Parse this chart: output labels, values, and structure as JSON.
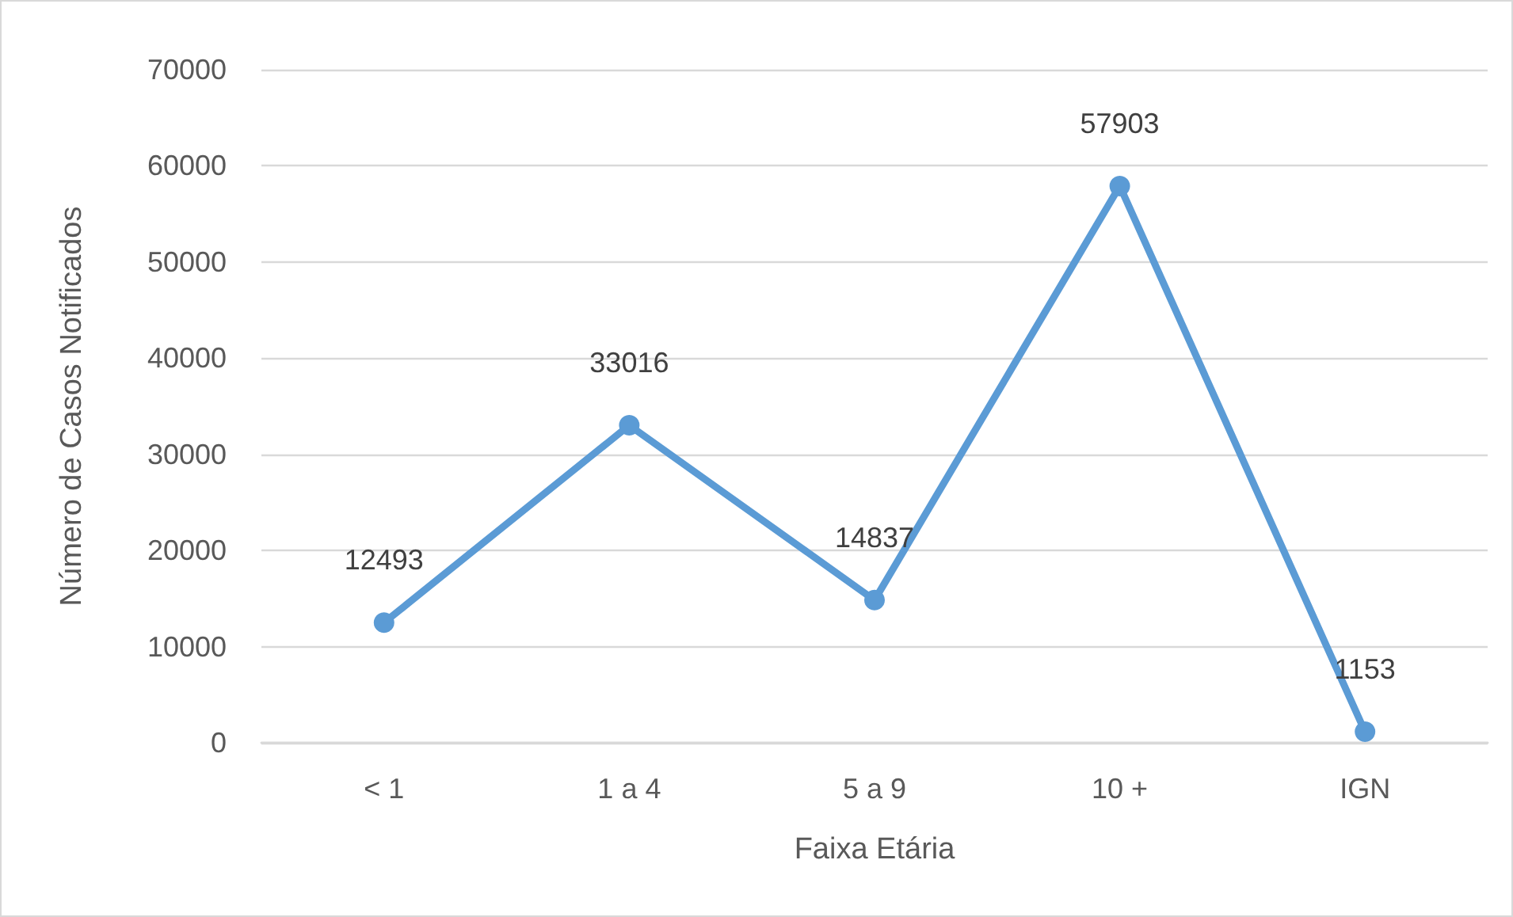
{
  "chart_data": {
    "type": "line",
    "xlabel": "Faixa Etária",
    "ylabel": "Número de Casos Notificados",
    "categories": [
      "< 1",
      "1 a 4",
      "5 a 9",
      "10 +",
      "IGN"
    ],
    "series": [
      {
        "color": "#5b9bd5",
        "values": [
          12493,
          33016,
          14837,
          57903,
          1153
        ]
      }
    ],
    "ylim": [
      0,
      70000
    ],
    "yticks": [
      0,
      10000,
      20000,
      30000,
      40000,
      50000,
      60000,
      70000
    ],
    "grid": "y",
    "marker": "circle",
    "line_style": "solid",
    "data_labels": true
  }
}
